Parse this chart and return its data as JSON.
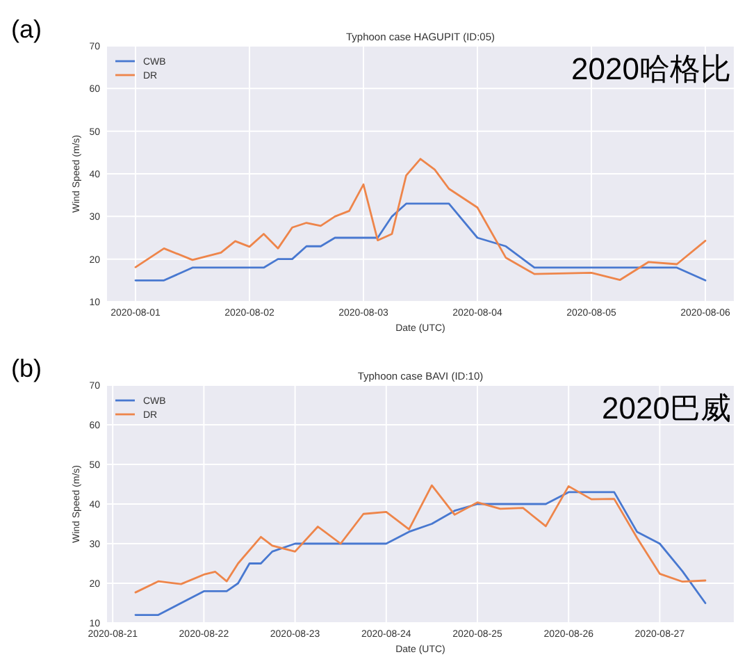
{
  "chart_data": [
    {
      "type": "line",
      "title": "Typhoon case HAGUPIT (ID:05)",
      "xlabel": "Date (UTC)",
      "ylabel": "Wind Speed (m/s)",
      "annotations": [
        "(a)",
        "2020哈格比"
      ],
      "xlim": [
        "2020-07-31T18:00",
        "2020-08-06T06:00"
      ],
      "xticks": [
        "2020-08-01",
        "2020-08-02",
        "2020-08-03",
        "2020-08-04",
        "2020-08-05",
        "2020-08-06"
      ],
      "ylim": [
        10,
        70
      ],
      "yticks": [
        10,
        20,
        30,
        40,
        50,
        60,
        70
      ],
      "grid": true,
      "legend": "top left",
      "series": [
        {
          "name": "CWB",
          "color": "#4878d0",
          "x": [
            "2020-08-01T00:00",
            "2020-08-01T06:00",
            "2020-08-01T12:00",
            "2020-08-02T03:00",
            "2020-08-02T06:00",
            "2020-08-02T09:00",
            "2020-08-02T12:00",
            "2020-08-02T15:00",
            "2020-08-02T18:00",
            "2020-08-03T03:00",
            "2020-08-03T06:00",
            "2020-08-03T09:00",
            "2020-08-03T18:00",
            "2020-08-04T00:00",
            "2020-08-04T06:00",
            "2020-08-04T12:00",
            "2020-08-05T18:00",
            "2020-08-06T00:00"
          ],
          "values": [
            15,
            15,
            18,
            18,
            20,
            20,
            23,
            23,
            25,
            25,
            30,
            33,
            33,
            25,
            23,
            18,
            18,
            15
          ]
        },
        {
          "name": "DR",
          "color": "#ee854a",
          "x": [
            "2020-08-01T00:00",
            "2020-08-01T06:00",
            "2020-08-01T12:00",
            "2020-08-01T18:00",
            "2020-08-01T21:00",
            "2020-08-02T00:00",
            "2020-08-02T03:00",
            "2020-08-02T06:00",
            "2020-08-02T09:00",
            "2020-08-02T12:00",
            "2020-08-02T15:00",
            "2020-08-02T18:00",
            "2020-08-02T21:00",
            "2020-08-03T00:00",
            "2020-08-03T03:00",
            "2020-08-03T06:00",
            "2020-08-03T09:00",
            "2020-08-03T12:00",
            "2020-08-03T15:00",
            "2020-08-03T18:00",
            "2020-08-03T21:00",
            "2020-08-04T00:00",
            "2020-08-04T06:00",
            "2020-08-04T12:00",
            "2020-08-05T00:00",
            "2020-08-05T06:00",
            "2020-08-05T12:00",
            "2020-08-05T18:00",
            "2020-08-06T00:00"
          ],
          "values": [
            18.1,
            22.5,
            19.8,
            21.5,
            24.2,
            22.9,
            25.9,
            22.5,
            27.4,
            28.5,
            27.8,
            30,
            31.3,
            37.5,
            24.4,
            25.9,
            39.6,
            43.5,
            41,
            36.5,
            34.3,
            32.1,
            20.3,
            16.5,
            16.8,
            15.1,
            19.3,
            18.8,
            24.3
          ]
        }
      ]
    },
    {
      "type": "line",
      "title": "Typhoon case BAVI (ID:10)",
      "xlabel": "Date (UTC)",
      "ylabel": "Wind Speed (m/s)",
      "annotations": [
        "(b)",
        "2020巴威"
      ],
      "xlim": [
        "2020-08-20T22:30",
        "2020-08-27T19:30"
      ],
      "xticks": [
        "2020-08-21",
        "2020-08-22",
        "2020-08-23",
        "2020-08-24",
        "2020-08-25",
        "2020-08-26",
        "2020-08-27"
      ],
      "ylim": [
        10,
        70
      ],
      "yticks": [
        10,
        20,
        30,
        40,
        50,
        60,
        70
      ],
      "grid": true,
      "legend": "top left",
      "series": [
        {
          "name": "CWB",
          "color": "#4878d0",
          "x": [
            "2020-08-21T06:00",
            "2020-08-21T12:00",
            "2020-08-22T00:00",
            "2020-08-22T06:00",
            "2020-08-22T09:00",
            "2020-08-22T12:00",
            "2020-08-22T15:00",
            "2020-08-22T18:00",
            "2020-08-23T00:00",
            "2020-08-24T00:00",
            "2020-08-24T06:00",
            "2020-08-24T12:00",
            "2020-08-24T18:00",
            "2020-08-25T00:00",
            "2020-08-25T18:00",
            "2020-08-26T00:00",
            "2020-08-26T12:00",
            "2020-08-26T18:00",
            "2020-08-27T00:00",
            "2020-08-27T06:00",
            "2020-08-27T12:00"
          ],
          "values": [
            12,
            12,
            18,
            18,
            20,
            25,
            25,
            28,
            30,
            30,
            33,
            35,
            38.3,
            40,
            40,
            43,
            43,
            33,
            30,
            23,
            15
          ]
        },
        {
          "name": "DR",
          "color": "#ee854a",
          "x": [
            "2020-08-21T06:00",
            "2020-08-21T12:00",
            "2020-08-21T18:00",
            "2020-08-22T00:00",
            "2020-08-22T03:00",
            "2020-08-22T06:00",
            "2020-08-22T09:00",
            "2020-08-22T15:00",
            "2020-08-22T18:00",
            "2020-08-23T00:00",
            "2020-08-23T06:00",
            "2020-08-23T12:00",
            "2020-08-23T18:00",
            "2020-08-24T00:00",
            "2020-08-24T06:00",
            "2020-08-24T12:00",
            "2020-08-24T18:00",
            "2020-08-25T00:00",
            "2020-08-25T06:00",
            "2020-08-25T12:00",
            "2020-08-25T18:00",
            "2020-08-26T00:00",
            "2020-08-26T06:00",
            "2020-08-26T12:00",
            "2020-08-26T18:00",
            "2020-08-27T00:00",
            "2020-08-27T06:00",
            "2020-08-27T12:00"
          ],
          "values": [
            17.7,
            20.5,
            19.8,
            22.2,
            22.9,
            20.5,
            25,
            31.7,
            29.5,
            28,
            34.3,
            30,
            37.5,
            38,
            33.6,
            44.7,
            37.3,
            40.4,
            38.8,
            39,
            34.4,
            44.5,
            41.2,
            41.3,
            31.5,
            22.4,
            20.4,
            20.7
          ]
        }
      ]
    }
  ]
}
